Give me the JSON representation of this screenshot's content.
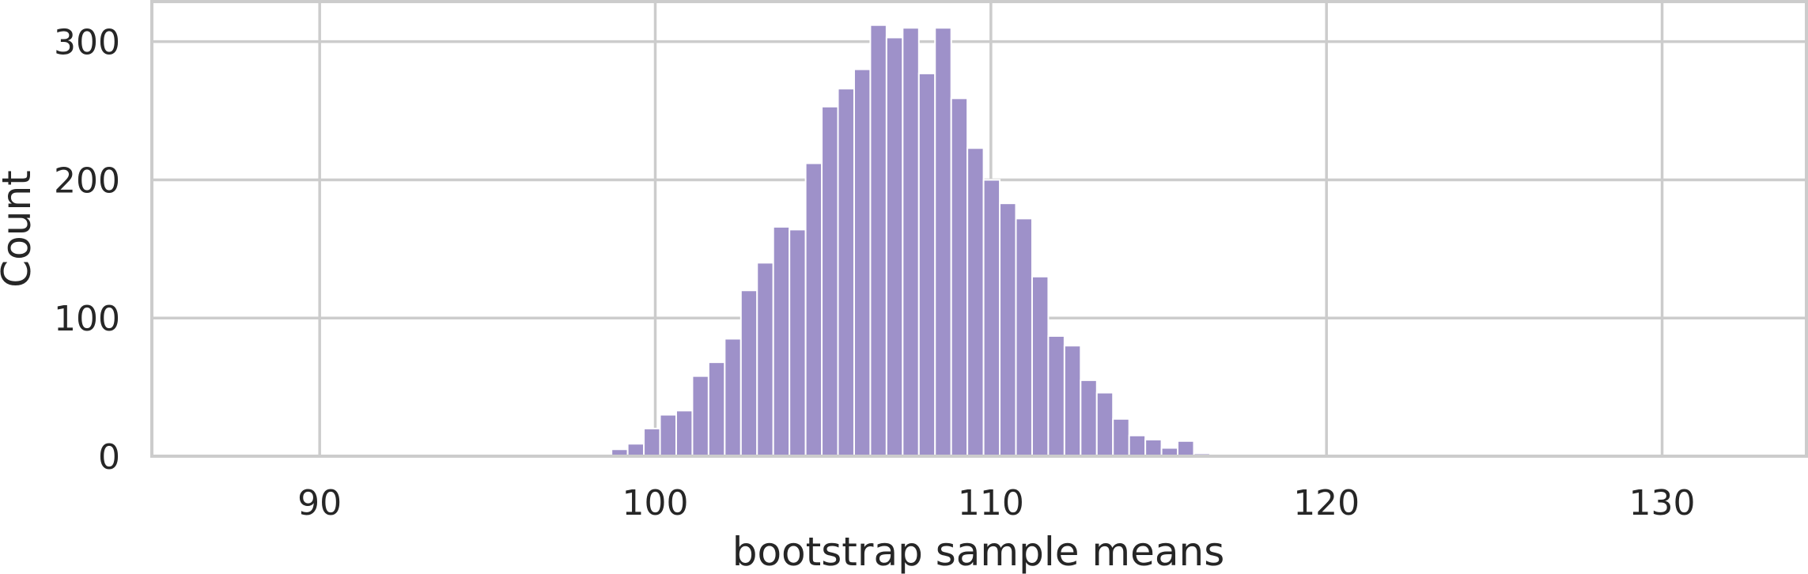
{
  "chart_data": {
    "type": "bar",
    "subtype": "histogram",
    "title": "",
    "xlabel": "bootstrap sample means",
    "ylabel": "Count",
    "xlim": [
      85,
      134.3
    ],
    "ylim": [
      0,
      329
    ],
    "x_ticks": [
      90,
      100,
      110,
      120,
      130
    ],
    "y_ticks": [
      0,
      100,
      200,
      300
    ],
    "grid": true,
    "legend": "none",
    "colors": {
      "bar": "#9e91c9",
      "grid": "#cccccc",
      "text": "#262626",
      "background": "#ffffff"
    },
    "bin_start": 97.25,
    "bin_width": 0.482,
    "values": [
      1,
      0,
      1,
      5,
      9,
      20,
      30,
      33,
      58,
      68,
      85,
      120,
      140,
      166,
      164,
      212,
      253,
      266,
      280,
      312,
      303,
      310,
      277,
      310,
      259,
      223,
      200,
      183,
      172,
      130,
      87,
      80,
      55,
      46,
      27,
      15,
      12,
      6,
      11,
      2,
      1
    ]
  }
}
